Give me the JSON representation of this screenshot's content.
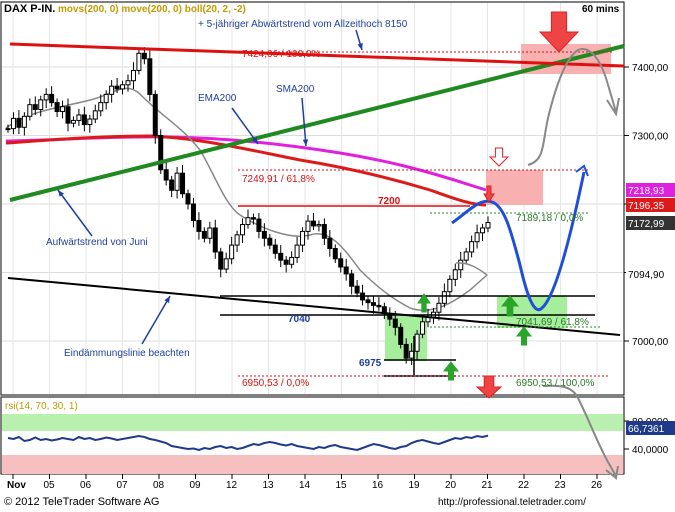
{
  "header": {
    "symbol": "DAX P-IN.",
    "indicators": "movs(200, 0) move(200, 0) boll(20, 2, -2)",
    "interval": "60 mins"
  },
  "footer": {
    "copyright": "© 2012 TeleTrader Software AG",
    "url": "http://professional.teletrader.com/"
  },
  "colors": {
    "background": "#ffffff",
    "candle": "#000000",
    "sma200": "#e020e0",
    "ema200": "#dd1a1a",
    "bollinger": "#888888",
    "uptrend": "#1f8a1f",
    "downtrend": "#dd1111",
    "annotation_blue": "#1f3fa0",
    "forecast_blue": "#1e4fd8",
    "rsi_line": "#1f3a8a",
    "rsi_upper_zone": "#b9f0b0",
    "rsi_lower_zone": "#f7c0c0",
    "pink_zone": "#f8b0b0",
    "green_zone": "#a6ee9c",
    "green_arrow": "#2aa52a",
    "red_arrow": "#ee4444"
  },
  "annotations": {
    "downtrend_note": "+ 5-jähriger Abwärtstrend vom Allzeithoch 8150",
    "ema200": "EMA200",
    "sma200": "SMA200",
    "uptrend_note": "Aufwärtstrend von Juni",
    "containment_note": "Eindämmungslinie beachten",
    "level_7200": "7200",
    "level_7040": "7040",
    "level_6975": "6975",
    "fib_top": "7424,06 / 100,0%",
    "fib_618_upper": "7249,91 / 61,8%",
    "fib_0_right": "7189,18 / 0,0%",
    "fib_618_lower": "7041,69 / 61,8%",
    "fib_0_left": "6950,53 / 0,0%",
    "fib_100_lower": "6950,53 / 100,0%"
  },
  "chart_data": [
    {
      "type": "candlestick",
      "title": "DAX P-IN. 60 mins",
      "x_unit": "date (Nov 2012)",
      "x_ticks": [
        "Nov",
        "05",
        "06",
        "07",
        "08",
        "09",
        "12",
        "13",
        "14",
        "15",
        "16",
        "19",
        "20",
        "21",
        "22",
        "23",
        "26"
      ],
      "y_ticks": [
        7000,
        7100,
        7200,
        7300,
        7400
      ],
      "y_tick_labels": [
        "7000,00",
        "7100,00",
        "7200,00",
        "7300,00",
        "7400,00"
      ],
      "ylim": [
        6935,
        7495
      ],
      "price_labels": [
        {
          "value": 7218.93,
          "label": "7218,93",
          "color": "#e020e0"
        },
        {
          "value": 7196.35,
          "label": "7196,35",
          "color": "#dd1a1a"
        },
        {
          "value": 7172.99,
          "label": "7172,99",
          "color": "#333333"
        },
        {
          "value": 7094.9,
          "label": "7094,90",
          "color": "#ffffff"
        }
      ],
      "close_series": [
        7310,
        7325,
        7312,
        7328,
        7345,
        7338,
        7352,
        7360,
        7348,
        7335,
        7342,
        7318,
        7322,
        7330,
        7316,
        7324,
        7336,
        7348,
        7360,
        7372,
        7368,
        7374,
        7380,
        7395,
        7420,
        7412,
        7360,
        7300,
        7250,
        7235,
        7220,
        7245,
        7215,
        7200,
        7176,
        7160,
        7150,
        7165,
        7130,
        7105,
        7120,
        7140,
        7155,
        7170,
        7180,
        7178,
        7160,
        7150,
        7140,
        7128,
        7118,
        7112,
        7122,
        7140,
        7160,
        7175,
        7168,
        7170,
        7150,
        7135,
        7120,
        7108,
        7098,
        7080,
        7070,
        7060,
        7056,
        7052,
        7050,
        7040,
        7032,
        7020,
        6995,
        6975,
        6985,
        7010,
        7028,
        7035,
        7042,
        7055,
        7072,
        7090,
        7104,
        7118,
        7130,
        7145,
        7158,
        7165,
        7173
      ],
      "sma200": [
        7290,
        7292,
        7290,
        7285,
        7278,
        7270,
        7260,
        7253,
        7248,
        7242,
        7236,
        7228,
        7218
      ],
      "ema200": [
        7295,
        7297,
        7295,
        7287,
        7275,
        7262,
        7250,
        7240,
        7226,
        7212,
        7200,
        7196
      ],
      "bollinger_upper_shown": [
        7320,
        7345,
        7360,
        7372,
        7385,
        7395,
        7400,
        7365,
        7300,
        7250,
        7215,
        7195,
        7185,
        7185,
        7186,
        7178,
        7160,
        7130,
        7100,
        7078,
        7070,
        7070,
        7082,
        7098
      ],
      "trendlines": [
        {
          "name": "Aufwärtstrend von Juni",
          "from": 7195,
          "to": 7435
        },
        {
          "name": "5-jähriger Abwärtstrend",
          "from": 7440,
          "to": 7408
        },
        {
          "name": "Eindämmungslinie",
          "from": 7098,
          "to": 7008
        }
      ],
      "horizontal_levels": [
        7424.06,
        7249.91,
        7200,
        7189.18,
        7066,
        7040,
        7041.69,
        6975,
        6950.53
      ],
      "zones": [
        {
          "kind": "pink",
          "from": 7400,
          "to": 7448
        },
        {
          "kind": "pink",
          "from": 7200,
          "to": 7257
        },
        {
          "kind": "green",
          "from": 6975,
          "to": 7042
        },
        {
          "kind": "green",
          "from": 7015,
          "to": 7070
        }
      ]
    },
    {
      "type": "line",
      "title": "rsi(14, 70, 30, 1)",
      "y_ticks": [
        40,
        80
      ],
      "y_tick_labels": [
        "40,0000",
        "80,0000"
      ],
      "last_value_label": "66,7361",
      "last_value": 66.7361,
      "ylim": [
        20,
        90
      ],
      "upper_zone": [
        70,
        90
      ],
      "lower_zone": [
        20,
        30
      ],
      "values": [
        62,
        60,
        64,
        56,
        58,
        63,
        58,
        60,
        57,
        59,
        62,
        60,
        58,
        64,
        60,
        62,
        58,
        60,
        63,
        61,
        58,
        60,
        62,
        64,
        66,
        64,
        60,
        58,
        55,
        52,
        46,
        44,
        42,
        40,
        41,
        38,
        42,
        40,
        44,
        46,
        42,
        44,
        40,
        42,
        46,
        50,
        48,
        52,
        54,
        52,
        49,
        47,
        50,
        46,
        44,
        42,
        40,
        44,
        42,
        46,
        48,
        44,
        42,
        40,
        38,
        42,
        46,
        50,
        48,
        45,
        42,
        40,
        44,
        46,
        52,
        56,
        58,
        55,
        52,
        50,
        54,
        58,
        62,
        60,
        64,
        62,
        66,
        64,
        66.7
      ]
    }
  ]
}
